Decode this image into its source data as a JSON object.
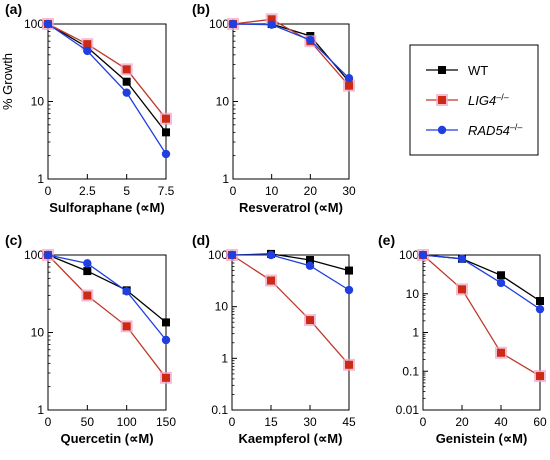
{
  "chart_data": [
    {
      "type": "line",
      "panel_label": "(a)",
      "xlabel": "Sulforaphane (∝M)",
      "ylabel": "% Growth",
      "yscale": "log",
      "ylim": [
        1,
        100
      ],
      "y_ticks": [
        "1",
        "10",
        "100"
      ],
      "xlim": [
        0,
        7.5
      ],
      "x_ticks": [
        "0",
        "2.5",
        "5",
        "7.5"
      ],
      "series": [
        {
          "name": "WT",
          "x": [
            0,
            2.5,
            5,
            7.5
          ],
          "y": [
            100,
            50,
            18,
            4
          ]
        },
        {
          "name": "LIG4",
          "x": [
            0,
            2.5,
            5,
            7.5
          ],
          "y": [
            100,
            55,
            26,
            6
          ]
        },
        {
          "name": "RAD54",
          "x": [
            0,
            2.5,
            5,
            7.5
          ],
          "y": [
            100,
            45,
            13,
            2.1
          ]
        }
      ]
    },
    {
      "type": "line",
      "panel_label": "(b)",
      "xlabel": "Resveratrol (∝M)",
      "ylabel": "",
      "yscale": "log",
      "ylim": [
        1,
        100
      ],
      "y_ticks": [
        "1",
        "10",
        "100"
      ],
      "xlim": [
        0,
        30
      ],
      "x_ticks": [
        "0",
        "10",
        "20",
        "30"
      ],
      "series": [
        {
          "name": "WT",
          "x": [
            0,
            10,
            20,
            30
          ],
          "y": [
            100,
            100,
            70,
            18
          ]
        },
        {
          "name": "LIG4",
          "x": [
            0,
            10,
            20,
            30
          ],
          "y": [
            100,
            115,
            60,
            16
          ]
        },
        {
          "name": "RAD54",
          "x": [
            0,
            10,
            20,
            30
          ],
          "y": [
            100,
            98,
            62,
            20
          ]
        }
      ]
    },
    {
      "type": "line",
      "panel_label": "(c)",
      "xlabel": "Quercetin (∝M)",
      "ylabel": "",
      "yscale": "log",
      "ylim": [
        1,
        100
      ],
      "y_ticks": [
        "1",
        "10",
        "100"
      ],
      "xlim": [
        0,
        150
      ],
      "x_ticks": [
        "0",
        "50",
        "100",
        "150"
      ],
      "series": [
        {
          "name": "WT",
          "x": [
            0,
            50,
            100,
            150
          ],
          "y": [
            100,
            62,
            35,
            13.5
          ]
        },
        {
          "name": "LIG4",
          "x": [
            0,
            50,
            100,
            150
          ],
          "y": [
            100,
            30,
            12,
            2.6
          ]
        },
        {
          "name": "RAD54",
          "x": [
            0,
            50,
            100,
            150
          ],
          "y": [
            100,
            78,
            34,
            8
          ]
        }
      ]
    },
    {
      "type": "line",
      "panel_label": "(d)",
      "xlabel": "Kaempferol (∝M)",
      "ylabel": "",
      "yscale": "log",
      "ylim": [
        0.1,
        100
      ],
      "y_ticks": [
        "0.1",
        "1",
        "10",
        "100"
      ],
      "xlim": [
        0,
        45
      ],
      "x_ticks": [
        "0",
        "15",
        "30",
        "45"
      ],
      "series": [
        {
          "name": "WT",
          "x": [
            0,
            15,
            30,
            45
          ],
          "y": [
            100,
            105,
            80,
            50
          ]
        },
        {
          "name": "LIG4",
          "x": [
            0,
            15,
            30,
            45
          ],
          "y": [
            100,
            32,
            5.5,
            0.75
          ]
        },
        {
          "name": "RAD54",
          "x": [
            0,
            15,
            30,
            45
          ],
          "y": [
            100,
            100,
            62,
            21
          ]
        }
      ]
    },
    {
      "type": "line",
      "panel_label": "(e)",
      "xlabel": "Genistein (∝M)",
      "ylabel": "",
      "yscale": "log",
      "ylim": [
        0.01,
        100
      ],
      "y_ticks": [
        "0.01",
        "0.1",
        "1",
        "10",
        "100"
      ],
      "xlim": [
        0,
        60
      ],
      "x_ticks": [
        "0",
        "20",
        "40",
        "60"
      ],
      "series": [
        {
          "name": "WT",
          "x": [
            0,
            20,
            40,
            60
          ],
          "y": [
            100,
            80,
            30,
            6.5
          ]
        },
        {
          "name": "LIG4",
          "x": [
            0,
            20,
            40,
            60
          ],
          "y": [
            100,
            13,
            0.3,
            0.075
          ]
        },
        {
          "name": "RAD54",
          "x": [
            0,
            20,
            40,
            60
          ],
          "y": [
            100,
            80,
            19,
            4
          ]
        }
      ]
    }
  ],
  "legend": {
    "placement": "right",
    "entries": [
      {
        "label": "WT",
        "sup": "",
        "italic": false,
        "color": "#000000",
        "marker": "square"
      },
      {
        "label": "LIG4",
        "sup": "–/–",
        "italic": true,
        "color": "#c0392b",
        "marker": "square"
      },
      {
        "label": "RAD54",
        "sup": "–/–",
        "italic": true,
        "color": "#1f3fe0",
        "marker": "circle"
      }
    ]
  },
  "colors": {
    "WT": "#000000",
    "LIG4": "#c0392b",
    "LIG4_marker": "#cc2a14",
    "LIG4_halo": "#f0a8c8",
    "RAD54": "#1f3fe0"
  }
}
